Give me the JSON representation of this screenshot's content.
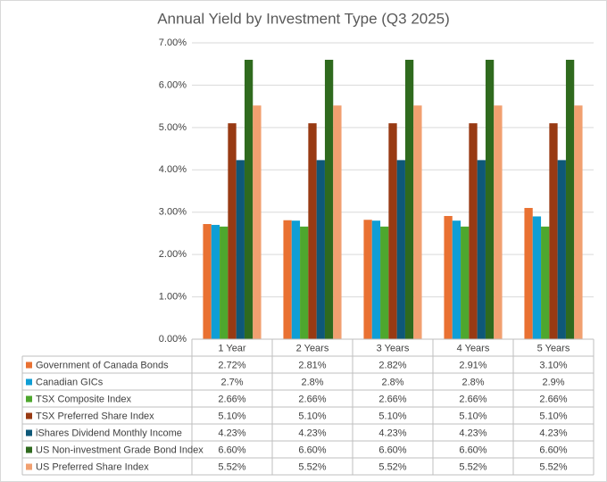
{
  "chart_data": {
    "type": "bar",
    "title": "Annual Yield by Investment Type (Q3 2025)",
    "categories": [
      "1 Year",
      "2 Years",
      "3 Years",
      "4 Years",
      "5 Years"
    ],
    "ylim": [
      0,
      7
    ],
    "yticks": [
      {
        "value": 0,
        "label": "0.00%"
      },
      {
        "value": 1,
        "label": "1.00%"
      },
      {
        "value": 2,
        "label": "2.00%"
      },
      {
        "value": 3,
        "label": "3.00%"
      },
      {
        "value": 4,
        "label": "4.00%"
      },
      {
        "value": 5,
        "label": "5.00%"
      },
      {
        "value": 6,
        "label": "6.00%"
      },
      {
        "value": 7,
        "label": "7.00%"
      }
    ],
    "grid": true,
    "series": [
      {
        "name": "Government of Canada Bonds",
        "color": "#E97132",
        "values": [
          2.72,
          2.81,
          2.82,
          2.91,
          3.1
        ],
        "value_labels": [
          "2.72%",
          "2.81%",
          "2.82%",
          "2.91%",
          "3.10%"
        ]
      },
      {
        "name": "Canadian GICs",
        "color": "#0F9ED5",
        "values": [
          2.7,
          2.8,
          2.8,
          2.8,
          2.9
        ],
        "value_labels": [
          "2.7%",
          "2.8%",
          "2.8%",
          "2.8%",
          "2.9%"
        ]
      },
      {
        "name": "TSX Composite Index",
        "color": "#4EA72E",
        "values": [
          2.66,
          2.66,
          2.66,
          2.66,
          2.66
        ],
        "value_labels": [
          "2.66%",
          "2.66%",
          "2.66%",
          "2.66%",
          "2.66%"
        ]
      },
      {
        "name": "TSX Preferred Share Index",
        "color": "#983A13",
        "values": [
          5.1,
          5.1,
          5.1,
          5.1,
          5.1
        ],
        "value_labels": [
          "5.10%",
          "5.10%",
          "5.10%",
          "5.10%",
          "5.10%"
        ]
      },
      {
        "name": "iShares Dividend Monthly Income",
        "color": "#0E5878",
        "values": [
          4.23,
          4.23,
          4.23,
          4.23,
          4.23
        ],
        "value_labels": [
          "4.23%",
          "4.23%",
          "4.23%",
          "4.23%",
          "4.23%"
        ]
      },
      {
        "name": "US Non-investment Grade Bond Index",
        "color": "#2F6A1E",
        "values": [
          6.6,
          6.6,
          6.6,
          6.6,
          6.6
        ],
        "value_labels": [
          "6.60%",
          "6.60%",
          "6.60%",
          "6.60%",
          "6.60%"
        ]
      },
      {
        "name": "US Preferred Share Index",
        "color": "#F1A070",
        "values": [
          5.52,
          5.52,
          5.52,
          5.52,
          5.52
        ],
        "value_labels": [
          "5.52%",
          "5.52%",
          "5.52%",
          "5.52%",
          "5.52%"
        ]
      }
    ]
  }
}
